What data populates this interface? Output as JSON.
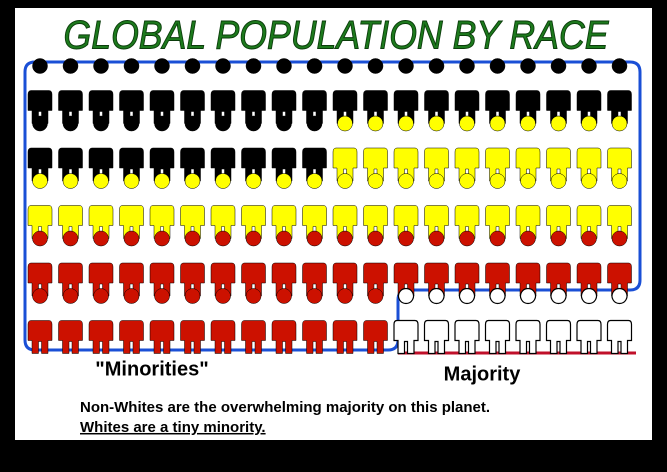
{
  "chart_data": {
    "type": "pictogram",
    "title": "GLOBAL POPULATION BY RACE",
    "values": [
      30,
      30,
      32,
      8
    ],
    "colors": [
      "#000000",
      "#ffff00",
      "#cc1100",
      "#ffffff"
    ],
    "group_labels": [
      "\"Minorities\"",
      "Majority"
    ],
    "notes": [
      "Non-Whites are the overwhelming majority on this planet.",
      "Whites are a tiny minority."
    ]
  }
}
